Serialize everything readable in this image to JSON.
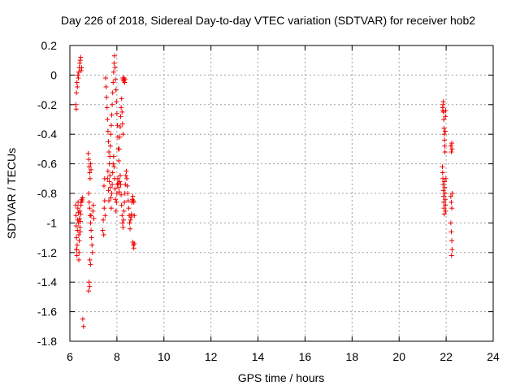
{
  "chart_data": {
    "type": "scatter",
    "title": "Day 226 of 2018, Sidereal Day-to-day VTEC variation (SDTVAR) for receiver hob2",
    "xlabel": "GPS time / hours",
    "ylabel": "SDTVAR / TECUs",
    "xlim": [
      6,
      24
    ],
    "ylim": [
      -1.8,
      0.2
    ],
    "xticks": [
      "6",
      "8",
      "10",
      "12",
      "14",
      "16",
      "18",
      "20",
      "22",
      "24"
    ],
    "yticks": [
      "0.2",
      "0",
      "-0.2",
      "-0.4",
      "-0.6",
      "-0.8",
      "-1",
      "-1.2",
      "-1.4",
      "-1.6",
      "-1.8"
    ],
    "grid": true,
    "marker": "+",
    "series": [
      {
        "name": "hob2",
        "color": "#ee0000",
        "points": [
          [
            6.25,
            -0.2
          ],
          [
            6.27,
            -0.23
          ],
          [
            6.28,
            -0.12
          ],
          [
            6.3,
            -0.05
          ],
          [
            6.32,
            -0.08
          ],
          [
            6.34,
            0.0
          ],
          [
            6.36,
            -0.02
          ],
          [
            6.38,
            0.02
          ],
          [
            6.4,
            0.05
          ],
          [
            6.42,
            0.08
          ],
          [
            6.44,
            0.1
          ],
          [
            6.46,
            0.12
          ],
          [
            6.48,
            0.03
          ],
          [
            6.5,
            0.05
          ],
          [
            6.25,
            -0.88
          ],
          [
            6.26,
            -0.95
          ],
          [
            6.27,
            -1.02
          ],
          [
            6.28,
            -1.1
          ],
          [
            6.29,
            -1.18
          ],
          [
            6.3,
            -1.22
          ],
          [
            6.31,
            -1.15
          ],
          [
            6.32,
            -1.05
          ],
          [
            6.33,
            -0.98
          ],
          [
            6.34,
            -0.9
          ],
          [
            6.35,
            -0.86
          ],
          [
            6.36,
            -0.93
          ],
          [
            6.37,
            -1.0
          ],
          [
            6.38,
            -1.08
          ],
          [
            6.39,
            -1.2
          ],
          [
            6.4,
            -1.12
          ],
          [
            6.41,
            -0.97
          ],
          [
            6.42,
            -0.92
          ],
          [
            6.43,
            -1.03
          ],
          [
            6.44,
            -1.06
          ],
          [
            6.45,
            -0.99
          ],
          [
            6.46,
            -0.94
          ],
          [
            6.47,
            -0.88
          ],
          [
            6.48,
            -0.86
          ],
          [
            6.5,
            -0.84
          ],
          [
            6.52,
            -0.85
          ],
          [
            6.54,
            -0.83
          ],
          [
            6.38,
            -1.25
          ],
          [
            6.28,
            -1.18
          ],
          [
            6.55,
            -1.65
          ],
          [
            6.58,
            -1.7
          ],
          [
            6.78,
            -0.53
          ],
          [
            6.8,
            -0.57
          ],
          [
            6.82,
            -0.62
          ],
          [
            6.84,
            -0.66
          ],
          [
            6.86,
            -0.7
          ],
          [
            6.88,
            -0.6
          ],
          [
            6.9,
            -0.64
          ],
          [
            6.8,
            -0.8
          ],
          [
            6.82,
            -0.86
          ],
          [
            6.84,
            -0.9
          ],
          [
            6.86,
            -0.95
          ],
          [
            6.88,
            -1.0
          ],
          [
            6.9,
            -1.05
          ],
          [
            6.92,
            -1.1
          ],
          [
            6.94,
            -1.15
          ],
          [
            6.96,
            -1.2
          ],
          [
            6.98,
            -0.92
          ],
          [
            7.0,
            -0.88
          ],
          [
            6.85,
            -1.25
          ],
          [
            6.88,
            -1.28
          ],
          [
            6.82,
            -1.4
          ],
          [
            6.84,
            -1.43
          ],
          [
            6.8,
            -1.46
          ],
          [
            6.9,
            -0.95
          ],
          [
            7.02,
            -0.97
          ],
          [
            7.4,
            -1.05
          ],
          [
            7.42,
            -0.98
          ],
          [
            7.44,
            -1.08
          ],
          [
            7.46,
            -0.9
          ],
          [
            7.48,
            -0.85
          ],
          [
            7.5,
            -0.95
          ],
          [
            7.45,
            -0.75
          ],
          [
            7.48,
            -0.7
          ],
          [
            7.52,
            -0.02
          ],
          [
            7.54,
            -0.08
          ],
          [
            7.56,
            -0.15
          ],
          [
            7.58,
            -0.22
          ],
          [
            7.6,
            -0.3
          ],
          [
            7.62,
            -0.38
          ],
          [
            7.64,
            -0.45
          ],
          [
            7.66,
            -0.52
          ],
          [
            7.68,
            -0.6
          ],
          [
            7.7,
            -0.55
          ],
          [
            7.72,
            -0.48
          ],
          [
            7.74,
            -0.4
          ],
          [
            7.76,
            -0.34
          ],
          [
            7.78,
            -0.27
          ],
          [
            7.8,
            -0.2
          ],
          [
            7.82,
            -0.12
          ],
          [
            7.84,
            -0.05
          ],
          [
            7.86,
            0.02
          ],
          [
            7.88,
            0.08
          ],
          [
            7.9,
            0.13
          ],
          [
            7.92,
            0.05
          ],
          [
            7.94,
            -0.03
          ],
          [
            7.96,
            -0.1
          ],
          [
            7.98,
            -0.18
          ],
          [
            8.0,
            -0.26
          ],
          [
            8.02,
            -0.34
          ],
          [
            8.04,
            -0.42
          ],
          [
            8.06,
            -0.5
          ],
          [
            8.08,
            -0.58
          ],
          [
            8.1,
            -0.5
          ],
          [
            8.12,
            -0.42
          ],
          [
            8.14,
            -0.35
          ],
          [
            8.16,
            -0.28
          ],
          [
            8.18,
            -0.22
          ],
          [
            8.2,
            -0.16
          ],
          [
            8.22,
            -0.25
          ],
          [
            8.24,
            -0.33
          ],
          [
            8.26,
            -0.4
          ],
          [
            7.6,
            -0.7
          ],
          [
            7.62,
            -0.65
          ],
          [
            7.64,
            -0.78
          ],
          [
            7.66,
            -0.85
          ],
          [
            7.68,
            -0.72
          ],
          [
            7.7,
            -0.68
          ],
          [
            7.72,
            -0.76
          ],
          [
            7.74,
            -0.83
          ],
          [
            7.76,
            -0.9
          ],
          [
            7.78,
            -0.8
          ],
          [
            7.8,
            -0.74
          ],
          [
            7.82,
            -0.66
          ],
          [
            7.84,
            -0.6
          ],
          [
            7.86,
            -0.55
          ],
          [
            7.88,
            -0.62
          ],
          [
            7.9,
            -0.7
          ],
          [
            7.92,
            -0.77
          ],
          [
            7.94,
            -0.84
          ],
          [
            7.96,
            -0.92
          ],
          [
            7.98,
            -0.86
          ],
          [
            8.0,
            -0.8
          ],
          [
            8.02,
            -0.74
          ],
          [
            8.04,
            -0.7
          ],
          [
            8.06,
            -0.73
          ],
          [
            8.08,
            -0.76
          ],
          [
            8.1,
            -0.79
          ],
          [
            8.12,
            -0.72
          ],
          [
            8.14,
            -0.68
          ],
          [
            8.16,
            -0.74
          ],
          [
            8.18,
            -0.81
          ],
          [
            8.2,
            -0.88
          ],
          [
            8.22,
            -0.95
          ],
          [
            8.24,
            -1.0
          ],
          [
            8.26,
            -1.03
          ],
          [
            8.28,
            -0.98
          ],
          [
            8.3,
            -0.92
          ],
          [
            8.32,
            -0.86
          ],
          [
            8.34,
            -0.8
          ],
          [
            8.36,
            -0.74
          ],
          [
            8.38,
            -0.68
          ],
          [
            8.4,
            -0.65
          ],
          [
            8.42,
            -0.7
          ],
          [
            8.44,
            -0.75
          ],
          [
            8.46,
            -0.8
          ],
          [
            8.48,
            -0.85
          ],
          [
            8.5,
            -0.9
          ],
          [
            8.52,
            -0.95
          ],
          [
            8.54,
            -1.0
          ],
          [
            8.56,
            -1.04
          ],
          [
            8.25,
            -0.02
          ],
          [
            8.27,
            -0.03
          ],
          [
            8.29,
            -0.04
          ],
          [
            8.31,
            -0.02
          ],
          [
            8.33,
            -0.05
          ],
          [
            8.35,
            -0.03
          ],
          [
            8.58,
            -0.98
          ],
          [
            8.6,
            -0.96
          ],
          [
            8.62,
            -0.94
          ],
          [
            8.64,
            -0.86
          ],
          [
            8.66,
            -0.84
          ],
          [
            8.68,
            -0.82
          ],
          [
            8.7,
            -0.85
          ],
          [
            8.72,
            -0.86
          ],
          [
            8.74,
            -0.95
          ],
          [
            8.68,
            -1.13
          ],
          [
            8.7,
            -1.15
          ],
          [
            8.72,
            -1.17
          ],
          [
            8.74,
            -1.14
          ],
          [
            21.85,
            -0.22
          ],
          [
            21.86,
            -0.24
          ],
          [
            21.87,
            -0.2
          ],
          [
            21.88,
            -0.18
          ],
          [
            21.89,
            -0.25
          ],
          [
            21.9,
            -0.3
          ],
          [
            21.91,
            -0.36
          ],
          [
            21.92,
            -0.4
          ],
          [
            21.93,
            -0.44
          ],
          [
            21.94,
            -0.48
          ],
          [
            21.95,
            -0.52
          ],
          [
            21.96,
            -0.38
          ],
          [
            21.97,
            -0.28
          ],
          [
            21.98,
            -0.24
          ],
          [
            21.84,
            -0.62
          ],
          [
            21.85,
            -0.66
          ],
          [
            21.86,
            -0.7
          ],
          [
            21.87,
            -0.74
          ],
          [
            21.88,
            -0.78
          ],
          [
            21.89,
            -0.82
          ],
          [
            21.9,
            -0.86
          ],
          [
            21.91,
            -0.9
          ],
          [
            21.92,
            -0.94
          ],
          [
            21.93,
            -0.72
          ],
          [
            21.94,
            -0.76
          ],
          [
            21.95,
            -0.8
          ],
          [
            21.96,
            -0.84
          ],
          [
            21.97,
            -0.88
          ],
          [
            21.98,
            -0.92
          ],
          [
            21.99,
            -0.7
          ],
          [
            22.2,
            -0.48
          ],
          [
            22.22,
            -0.52
          ],
          [
            22.24,
            -0.46
          ],
          [
            22.25,
            -0.5
          ],
          [
            22.2,
            -0.82
          ],
          [
            22.22,
            -0.86
          ],
          [
            22.24,
            -0.9
          ],
          [
            22.26,
            -0.8
          ],
          [
            22.2,
            -1.0
          ],
          [
            22.22,
            -1.06
          ],
          [
            22.24,
            -1.12
          ],
          [
            22.25,
            -1.18
          ],
          [
            22.23,
            -1.22
          ]
        ]
      }
    ]
  }
}
